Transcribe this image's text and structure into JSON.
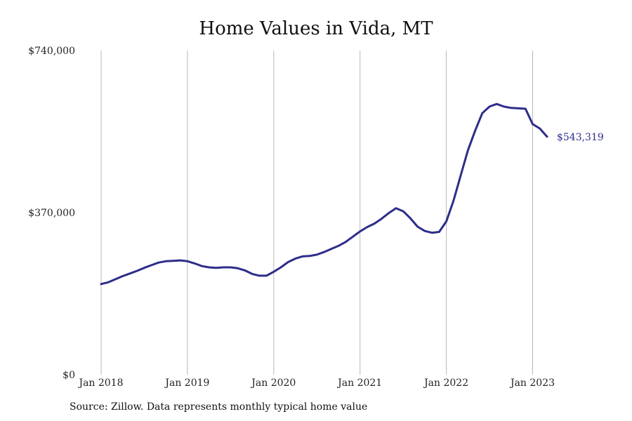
{
  "chart_data": {
    "type": "line",
    "title": "Home Values in Vida, MT",
    "xlabel": "",
    "ylabel": "",
    "ylim": [
      0,
      740000
    ],
    "y_ticks": [
      "$740,000",
      "$370,000",
      "$0"
    ],
    "y_tick_values": [
      740000,
      370000,
      0
    ],
    "x_ticks": [
      "Jan 2018",
      "Jan 2019",
      "Jan 2020",
      "Jan 2021",
      "Jan 2022",
      "Jan 2023"
    ],
    "grid": "vertical",
    "line_color": "#2e2d8a",
    "end_label": "$543,319",
    "series": [
      {
        "x": [
          "2018-01",
          "2018-02",
          "2018-03",
          "2018-04",
          "2018-05",
          "2018-06",
          "2018-07",
          "2018-08",
          "2018-09",
          "2018-10",
          "2018-11",
          "2018-12",
          "2019-01",
          "2019-02",
          "2019-03",
          "2019-04",
          "2019-05",
          "2019-06",
          "2019-07",
          "2019-08",
          "2019-09",
          "2019-10",
          "2019-11",
          "2019-12",
          "2020-01",
          "2020-02",
          "2020-03",
          "2020-04",
          "2020-05",
          "2020-06",
          "2020-07",
          "2020-08",
          "2020-09",
          "2020-10",
          "2020-11",
          "2020-12",
          "2021-01",
          "2021-02",
          "2021-03",
          "2021-04",
          "2021-05",
          "2021-06",
          "2021-07",
          "2021-08",
          "2021-09",
          "2021-10",
          "2021-11",
          "2021-12",
          "2022-01",
          "2022-02",
          "2022-03",
          "2022-04",
          "2022-05",
          "2022-06",
          "2022-07",
          "2022-08",
          "2022-09",
          "2022-10",
          "2022-11",
          "2022-12",
          "2023-01",
          "2023-02",
          "2023-03"
        ],
        "values": [
          207000,
          211000,
          218000,
          225000,
          231000,
          237000,
          244000,
          250000,
          256000,
          259000,
          260000,
          261000,
          259000,
          254000,
          248000,
          245000,
          244000,
          245000,
          245000,
          243000,
          238000,
          230000,
          226000,
          226000,
          235000,
          245000,
          257000,
          265000,
          270000,
          271000,
          274000,
          280000,
          287000,
          294000,
          303000,
          315000,
          327000,
          337000,
          345000,
          356000,
          369000,
          380000,
          373000,
          357000,
          338000,
          328000,
          324000,
          326000,
          350000,
          397000,
          455000,
          512000,
          557000,
          597000,
          612000,
          618000,
          612000,
          609000,
          608000,
          607000,
          572000,
          562000,
          543319
        ]
      }
    ]
  },
  "source": "Source: Zillow. Data represents monthly typical home value"
}
